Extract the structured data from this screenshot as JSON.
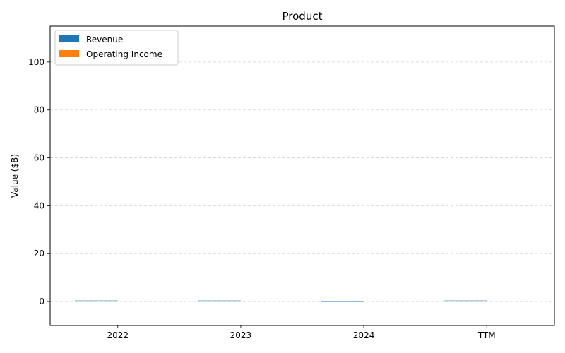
{
  "chart_data": {
    "type": "bar",
    "title": "Product",
    "xlabel": "",
    "ylabel": "Value ($B)",
    "categories": [
      "2022",
      "2023",
      "2024",
      "TTM"
    ],
    "series": [
      {
        "name": "Revenue",
        "color": "#1f77b4",
        "values": [
          0.4,
          0.4,
          0.2,
          0.4
        ]
      },
      {
        "name": "Operating Income",
        "color": "#ff7f0e",
        "values": [
          0,
          0,
          0,
          0
        ]
      }
    ],
    "ylim": [
      -10,
      115
    ],
    "yticks": [
      0,
      20,
      40,
      60,
      80,
      100
    ],
    "grid": "y-dashed",
    "legend_position": "top-left"
  }
}
